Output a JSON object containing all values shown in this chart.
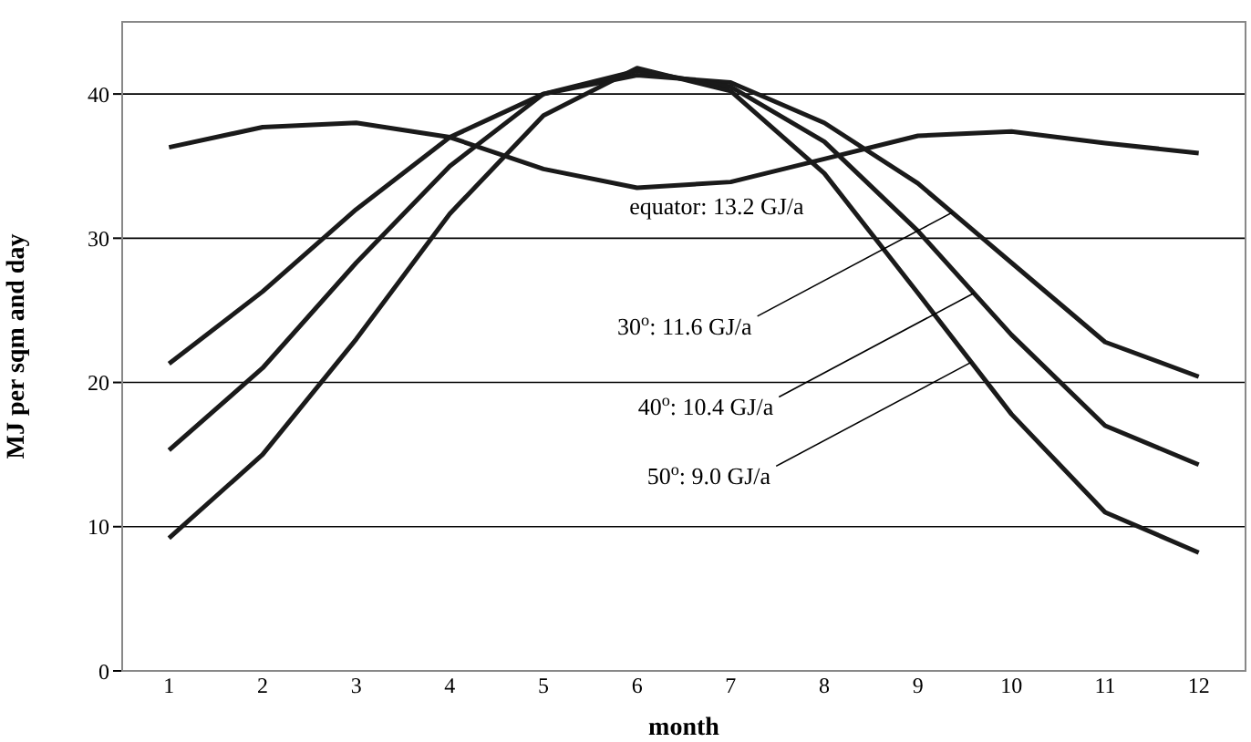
{
  "chart_data": {
    "type": "line",
    "xlabel": "month",
    "ylabel": "MJ per sqm and day",
    "x": [
      1,
      2,
      3,
      4,
      5,
      6,
      7,
      8,
      9,
      10,
      11,
      12
    ],
    "xlim": [
      0.5,
      12.5
    ],
    "xticks": [
      1,
      2,
      3,
      4,
      5,
      6,
      7,
      8,
      9,
      10,
      11,
      12
    ],
    "ylim": [
      0,
      45
    ],
    "yticks": [
      0,
      10,
      20,
      30,
      40
    ],
    "grid": "y",
    "marker": "none",
    "line_style": "solid",
    "series": [
      {
        "color": "#1a1a1a",
        "values": [
          36.3,
          37.7,
          38.0,
          37.0,
          34.8,
          33.5,
          33.9,
          35.5,
          37.1,
          37.4,
          36.6,
          35.9
        ]
      },
      {
        "color": "#1a1a1a",
        "values": [
          21.3,
          26.3,
          32.0,
          37.0,
          40.0,
          41.3,
          40.8,
          38.0,
          33.8,
          28.3,
          22.8,
          20.4
        ]
      },
      {
        "color": "#1a1a1a",
        "values": [
          15.3,
          21.0,
          28.3,
          35.0,
          40.0,
          41.6,
          40.5,
          36.7,
          30.5,
          23.3,
          17.0,
          14.3
        ]
      },
      {
        "color": "#1a1a1a",
        "values": [
          9.2,
          15.0,
          23.0,
          31.7,
          38.5,
          41.8,
          40.2,
          34.5,
          26.2,
          17.8,
          11.0,
          8.2
        ]
      }
    ],
    "annotations": [
      {
        "text": "equator: 13.2 GJ/a",
        "x": 6.85,
        "y": 33.7
      },
      {
        "text": "30$^{o}$: 11.6 GJ/a",
        "x": 9.37,
        "y": 31.8
      },
      {
        "text": "40$^{o}$: 10.4 GJ/a",
        "x": 9.6,
        "y": 26.2
      },
      {
        "text": "50$^{o}$: 9.0 GJ/a",
        "x": 9.57,
        "y": 21.4
      }
    ]
  }
}
